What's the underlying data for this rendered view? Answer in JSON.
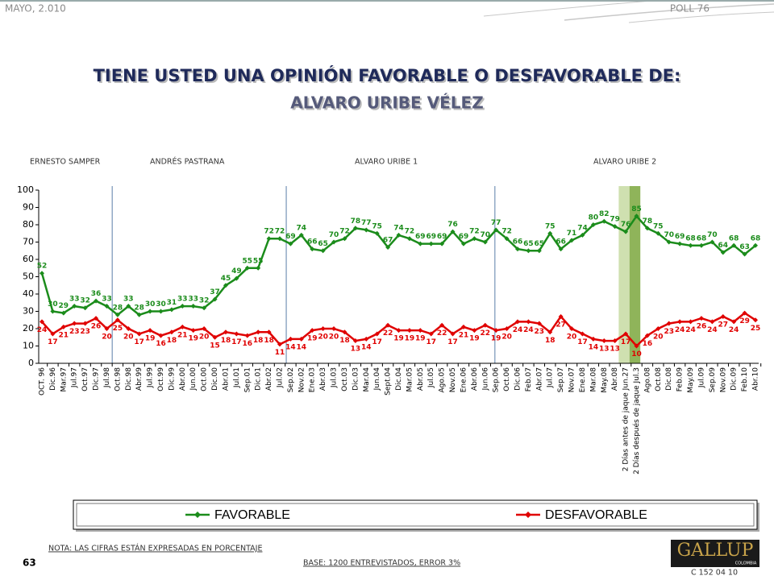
{
  "header": {
    "date": "MAYO, 2.010",
    "poll": "POLL 76"
  },
  "chart_data": {
    "type": "line",
    "title": "TIENE USTED UNA OPINIÓN FAVORABLE O DESFAVORABLE DE:",
    "subtitle": "ALVARO URIBE VÉLEZ",
    "periods": [
      "ERNESTO SAMPER",
      "ANDRÉS  PASTRANA",
      "ALVARO URIBE 1",
      "ALVARO URIBE 2"
    ],
    "categories": [
      "OCT. 96",
      "Dic.96",
      "Mar.97",
      "Jul.97",
      "Oct.97",
      "Dic.97",
      "Jul.98",
      "Oct.98",
      "Dic.98",
      "Abr.99",
      "Jul.99",
      "Oct.99",
      "Dic.99",
      "Abr.00",
      "Jun.00",
      "Oct.00",
      "Dic.00",
      "Abr.01",
      "Jul.01",
      "Sep.01",
      "Dic.01",
      "Abr.02",
      "Jul.02",
      "Sep.02",
      "Nov.02",
      "Ene.03",
      "Abr.03",
      "Jul.03",
      "Oct.03",
      "Dic.03",
      "Mar.04",
      "Jun.04",
      "Sept.04",
      "Dic.04",
      "Mar.05",
      "Abr.05",
      "Jul.05",
      "Ago.05",
      "Nov.05",
      "Ene.06",
      "Abr.06",
      "Jun.06",
      "Sep.06",
      "Oct.06",
      "Dic.06",
      "Feb.07",
      "Abr.07",
      "Jul.07",
      "Sep.07",
      "Nov.07",
      "Ene.08",
      "Mar.08",
      "May.08",
      "Abr.08",
      "2 Días antes de jaque Jun.27",
      "2 Días después de jaque Jul.3",
      "Ago.08",
      "Oct.08",
      "Dic.08",
      "Feb.09",
      "May.09",
      "Jul.09",
      "Sep.09",
      "Nov.09",
      "Dic.09",
      "Feb.10",
      "Abr.10"
    ],
    "series": [
      {
        "name": "FAVORABLE",
        "color": "#1b8c1b",
        "values": [
          52,
          30,
          29,
          33,
          32,
          36,
          33,
          28,
          33,
          28,
          30,
          30,
          31,
          33,
          33,
          32,
          37,
          45,
          49,
          55,
          55,
          72,
          72,
          69,
          74,
          66,
          65,
          70,
          72,
          78,
          77,
          75,
          67,
          74,
          72,
          69,
          69,
          69,
          76,
          69,
          72,
          70,
          77,
          72,
          66,
          65,
          65,
          75,
          66,
          71,
          74,
          80,
          82,
          79,
          76,
          85,
          78,
          75,
          70,
          69,
          68,
          68,
          70,
          64,
          68,
          63,
          68
        ]
      },
      {
        "name": "DESFAVORABLE",
        "color": "#e00000",
        "values": [
          24,
          17,
          21,
          23,
          23,
          26,
          20,
          25,
          20,
          17,
          19,
          16,
          18,
          21,
          19,
          20,
          15,
          18,
          17,
          16,
          18,
          18,
          11,
          14,
          14,
          19,
          20,
          20,
          18,
          13,
          14,
          17,
          22,
          19,
          19,
          19,
          17,
          22,
          17,
          21,
          19,
          22,
          19,
          20,
          24,
          24,
          23,
          18,
          27,
          20,
          17,
          14,
          13,
          13,
          17,
          10,
          16,
          20,
          23,
          24,
          24,
          26,
          24,
          27,
          24,
          29,
          25
        ]
      }
    ],
    "ylim": [
      0,
      100
    ],
    "yticks": [
      0,
      10,
      20,
      30,
      40,
      50,
      60,
      70,
      80,
      90,
      100
    ]
  },
  "footer": {
    "note": "NOTA: LAS CIFRAS ESTÁN EXPRESADAS EN PORCENTAJE",
    "page": "63",
    "base": "BASE: 1200 ENTREVISTADOS, ERROR 3%",
    "code": "C 152 04 10",
    "logo": "GALLUP",
    "logo_sub": "COLOMBIA"
  }
}
